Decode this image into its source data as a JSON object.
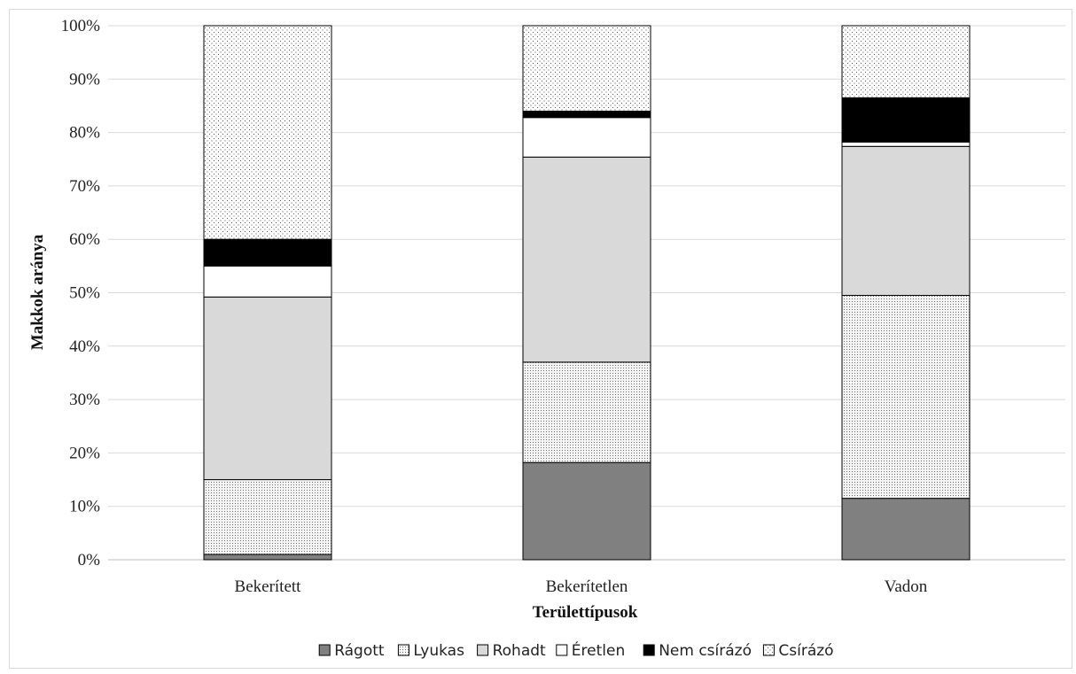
{
  "chart_data": {
    "type": "bar",
    "stacked": true,
    "categories": [
      "Bekerített",
      "Bekerítetlen",
      "Vadon"
    ],
    "series": [
      {
        "name": "Rágott",
        "values": [
          1,
          18.2,
          11.5
        ],
        "color": "#808080",
        "pattern": "solid"
      },
      {
        "name": "Lyukas",
        "values": [
          14,
          18.8,
          38
        ],
        "color": "#f0f0f0",
        "pattern": "fine-dots"
      },
      {
        "name": "Rohadt",
        "values": [
          34.2,
          38.4,
          27.9
        ],
        "color": "#d9d9d9",
        "pattern": "solid"
      },
      {
        "name": "Éretlen",
        "values": [
          5.8,
          7.4,
          0.8
        ],
        "color": "#ffffff",
        "pattern": "solid"
      },
      {
        "name": "Nem csírázó",
        "values": [
          5,
          1.2,
          8.3
        ],
        "color": "#000000",
        "pattern": "solid"
      },
      {
        "name": "Csírázó",
        "values": [
          40,
          16,
          13.5
        ],
        "color": "#ffffff",
        "pattern": "sparse-dots"
      }
    ],
    "yticks": [
      "0%",
      "10%",
      "20%",
      "30%",
      "40%",
      "50%",
      "60%",
      "70%",
      "80%",
      "90%",
      "100%"
    ],
    "ylim": [
      0,
      100
    ],
    "xlabel": "Területtípusok",
    "ylabel": "Makkok aránya",
    "grid": true,
    "legend": "bottom"
  }
}
